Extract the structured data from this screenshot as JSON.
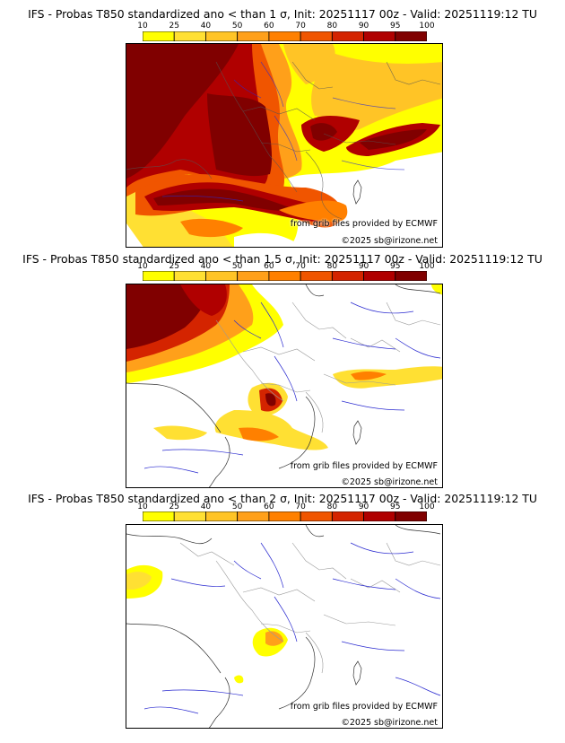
{
  "colorbar": {
    "ticks": [
      "10",
      "25",
      "40",
      "50",
      "60",
      "70",
      "80",
      "90",
      "95",
      "100"
    ],
    "colors": [
      "#ffff00",
      "#ffe033",
      "#ffc426",
      "#ffa01a",
      "#ff8000",
      "#f05500",
      "#d42400",
      "#b00000",
      "#800000"
    ]
  },
  "panels": [
    {
      "title": "IFS - Probas T850  standardized ano < than 1 σ, Init: 20251117 00z - Valid: 20251119:12 TU",
      "credit_source": "from grib files provided by ECMWF",
      "credit_copyright": "©2025 sb@irizone.net"
    },
    {
      "title": "IFS - Probas T850  standardized ano < than 1.5 σ, Init: 20251117 00z - Valid: 20251119:12 TU",
      "credit_source": "from grib files provided by ECMWF",
      "credit_copyright": "©2025 sb@irizone.net"
    },
    {
      "title": "IFS - Probas T850  standardized ano < than 2 σ, Init: 20251117 00z - Valid: 20251119:12 TU",
      "credit_source": "from grib files provided by ECMWF",
      "credit_copyright": "©2025 sb@irizone.net"
    }
  ]
}
